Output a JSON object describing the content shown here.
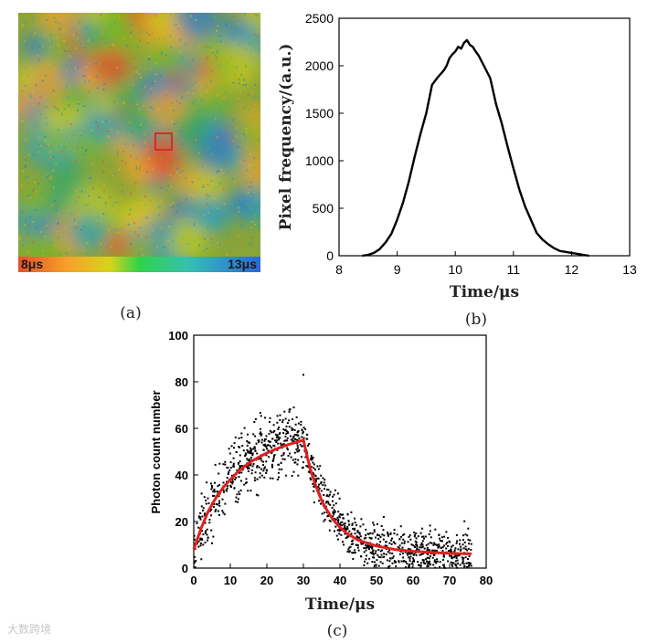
{
  "panels": {
    "a_label": "(a)",
    "b_label": "(b)",
    "c_label": "(c)"
  },
  "watermark": "大数跨境",
  "panel_a": {
    "type": "heatmap",
    "description_colors": [
      "#e5502b",
      "#f6a02a",
      "#c8c81e",
      "#78b428",
      "#3ca85a",
      "#2f9fb8",
      "#2a7bd0"
    ],
    "colorbar": {
      "min_label": "8μs",
      "max_label": "13μs",
      "min": 8,
      "max": 13
    },
    "highlight_box_color": "#d03020"
  },
  "chart_data": [
    {
      "type": "line",
      "id": "b",
      "xlabel": "Time/μs",
      "ylabel": "Pixel frequency/(a.u.)",
      "xlim": [
        8,
        13
      ],
      "ylim": [
        0,
        2500
      ],
      "xticks": [
        8,
        9,
        10,
        11,
        12,
        13
      ],
      "yticks": [
        0,
        500,
        1000,
        1500,
        2000,
        2500
      ],
      "series": [
        {
          "name": "histogram",
          "color": "#000000",
          "x": [
            8.4,
            8.5,
            8.6,
            8.7,
            8.8,
            8.9,
            9.0,
            9.1,
            9.2,
            9.3,
            9.4,
            9.5,
            9.6,
            9.7,
            9.8,
            9.85,
            9.9,
            9.95,
            10.0,
            10.05,
            10.1,
            10.15,
            10.2,
            10.25,
            10.3,
            10.35,
            10.4,
            10.5,
            10.6,
            10.7,
            10.8,
            10.9,
            11.0,
            11.1,
            11.2,
            11.3,
            11.4,
            11.5,
            11.6,
            11.7,
            11.8,
            11.9,
            12.0,
            12.1,
            12.2,
            12.3
          ],
          "values": [
            0,
            10,
            30,
            70,
            140,
            230,
            380,
            560,
            780,
            1040,
            1280,
            1500,
            1800,
            1880,
            1950,
            2000,
            2080,
            2120,
            2150,
            2200,
            2180,
            2240,
            2270,
            2220,
            2200,
            2150,
            2110,
            1990,
            1870,
            1600,
            1390,
            1150,
            920,
            700,
            520,
            380,
            240,
            170,
            120,
            80,
            50,
            40,
            30,
            20,
            10,
            0
          ]
        }
      ]
    },
    {
      "type": "scatter",
      "id": "c",
      "xlabel": "Time/μs",
      "ylabel": "Photon count number",
      "xlim": [
        0,
        80
      ],
      "ylim": [
        0,
        100
      ],
      "xticks": [
        0,
        10,
        20,
        30,
        40,
        50,
        60,
        70,
        80
      ],
      "yticks": [
        0,
        20,
        40,
        60,
        80,
        100
      ],
      "series": [
        {
          "name": "measured photon counts (dense scatter)",
          "color": "#000000",
          "x_range": [
            0,
            76
          ],
          "rise": {
            "amplitude": 56,
            "tau": 10,
            "until": 30
          },
          "decay": {
            "peak": 55,
            "floor": 6,
            "tau": 7,
            "from": 30
          },
          "spread": 7,
          "outlier": {
            "x": 30,
            "y": 83
          }
        },
        {
          "name": "fit",
          "color": "#e02020",
          "x": [
            0,
            2,
            4,
            6,
            8,
            10,
            12,
            14,
            16,
            18,
            20,
            22,
            24,
            26,
            28,
            30,
            31,
            32,
            33,
            34,
            35,
            36,
            38,
            40,
            42,
            45,
            50,
            55,
            60,
            65,
            70,
            76
          ],
          "values": [
            8,
            17,
            24.5,
            30,
            34.5,
            38,
            41.2,
            43.8,
            46,
            47.8,
            49.4,
            50.8,
            52,
            53.1,
            54,
            55,
            48,
            42,
            37,
            32.8,
            29,
            26,
            21,
            17.5,
            14.8,
            12,
            9.5,
            8,
            7.2,
            6.7,
            6.3,
            6.1
          ]
        }
      ]
    }
  ]
}
